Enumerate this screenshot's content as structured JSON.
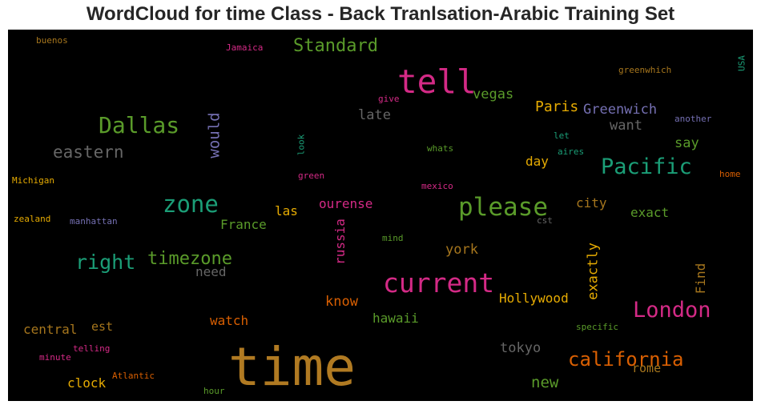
{
  "title": "WordCloud for time Class - Back Tranlsation-Arabic Training Set",
  "words": [
    {
      "text": "time",
      "color": "#b07a22"
    },
    {
      "text": "tell",
      "color": "#d42a86"
    },
    {
      "text": "current",
      "color": "#d42a86"
    },
    {
      "text": "please",
      "color": "#5a9b2a"
    },
    {
      "text": "Dallas",
      "color": "#5a9b2a"
    },
    {
      "text": "zone",
      "color": "#1b9e77"
    },
    {
      "text": "Pacific",
      "color": "#1b9e77"
    },
    {
      "text": "London",
      "color": "#d42a86"
    },
    {
      "text": "california",
      "color": "#d95f02"
    },
    {
      "text": "right",
      "color": "#1b9e77"
    },
    {
      "text": "timezone",
      "color": "#5a9b2a"
    },
    {
      "text": "Standard",
      "color": "#5a9b2a"
    },
    {
      "text": "eastern",
      "color": "#666666"
    },
    {
      "text": "would",
      "color": "#7570b3"
    },
    {
      "text": "Paris",
      "color": "#e6ab02"
    },
    {
      "text": "Greenwich",
      "color": "#7570b3"
    },
    {
      "text": "vegas",
      "color": "#5a9b2a"
    },
    {
      "text": "late",
      "color": "#666666"
    },
    {
      "text": "want",
      "color": "#666666"
    },
    {
      "text": "say",
      "color": "#5a9b2a"
    },
    {
      "text": "day",
      "color": "#e6ab02"
    },
    {
      "text": "exact",
      "color": "#5a9b2a"
    },
    {
      "text": "city",
      "color": "#a6761d"
    },
    {
      "text": "ourense",
      "color": "#d42a86"
    },
    {
      "text": "las",
      "color": "#e6ab02"
    },
    {
      "text": "France",
      "color": "#5a9b2a"
    },
    {
      "text": "russia",
      "color": "#d42a86"
    },
    {
      "text": "york",
      "color": "#a6761d"
    },
    {
      "text": "need",
      "color": "#666666"
    },
    {
      "text": "know",
      "color": "#d95f02"
    },
    {
      "text": "exactly",
      "color": "#e6ab02"
    },
    {
      "text": "Hollywood",
      "color": "#e6ab02"
    },
    {
      "text": "Find",
      "color": "#a6761d"
    },
    {
      "text": "central",
      "color": "#a6761d"
    },
    {
      "text": "est",
      "color": "#a6761d"
    },
    {
      "text": "watch",
      "color": "#d95f02"
    },
    {
      "text": "hawaii",
      "color": "#5a9b2a"
    },
    {
      "text": "tokyo",
      "color": "#666666"
    },
    {
      "text": "clock",
      "color": "#e6ab02"
    },
    {
      "text": "new",
      "color": "#5a9b2a"
    },
    {
      "text": "rome",
      "color": "#a6761d"
    },
    {
      "text": "buenos",
      "color": "#a6761d"
    },
    {
      "text": "Jamaica",
      "color": "#d42a86"
    },
    {
      "text": "USA",
      "color": "#1b9e77"
    },
    {
      "text": "greenwhich",
      "color": "#a6761d"
    },
    {
      "text": "give",
      "color": "#d42a86"
    },
    {
      "text": "another",
      "color": "#7570b3"
    },
    {
      "text": "let",
      "color": "#1b9e77"
    },
    {
      "text": "aires",
      "color": "#1b9e77"
    },
    {
      "text": "look",
      "color": "#1b9e77"
    },
    {
      "text": "whats",
      "color": "#5a9b2a"
    },
    {
      "text": "home",
      "color": "#d95f02"
    },
    {
      "text": "green",
      "color": "#d42a86"
    },
    {
      "text": "Michigan",
      "color": "#e6ab02"
    },
    {
      "text": "mexico",
      "color": "#d42a86"
    },
    {
      "text": "zealand",
      "color": "#e6ab02"
    },
    {
      "text": "manhattan",
      "color": "#7570b3"
    },
    {
      "text": "cst",
      "color": "#666666"
    },
    {
      "text": "mind",
      "color": "#5a9b2a"
    },
    {
      "text": "specific",
      "color": "#5a9b2a"
    },
    {
      "text": "telling",
      "color": "#d42a86"
    },
    {
      "text": "minute",
      "color": "#d42a86"
    },
    {
      "text": "Atlantic",
      "color": "#d95f02"
    },
    {
      "text": "hour",
      "color": "#5a9b2a"
    }
  ]
}
